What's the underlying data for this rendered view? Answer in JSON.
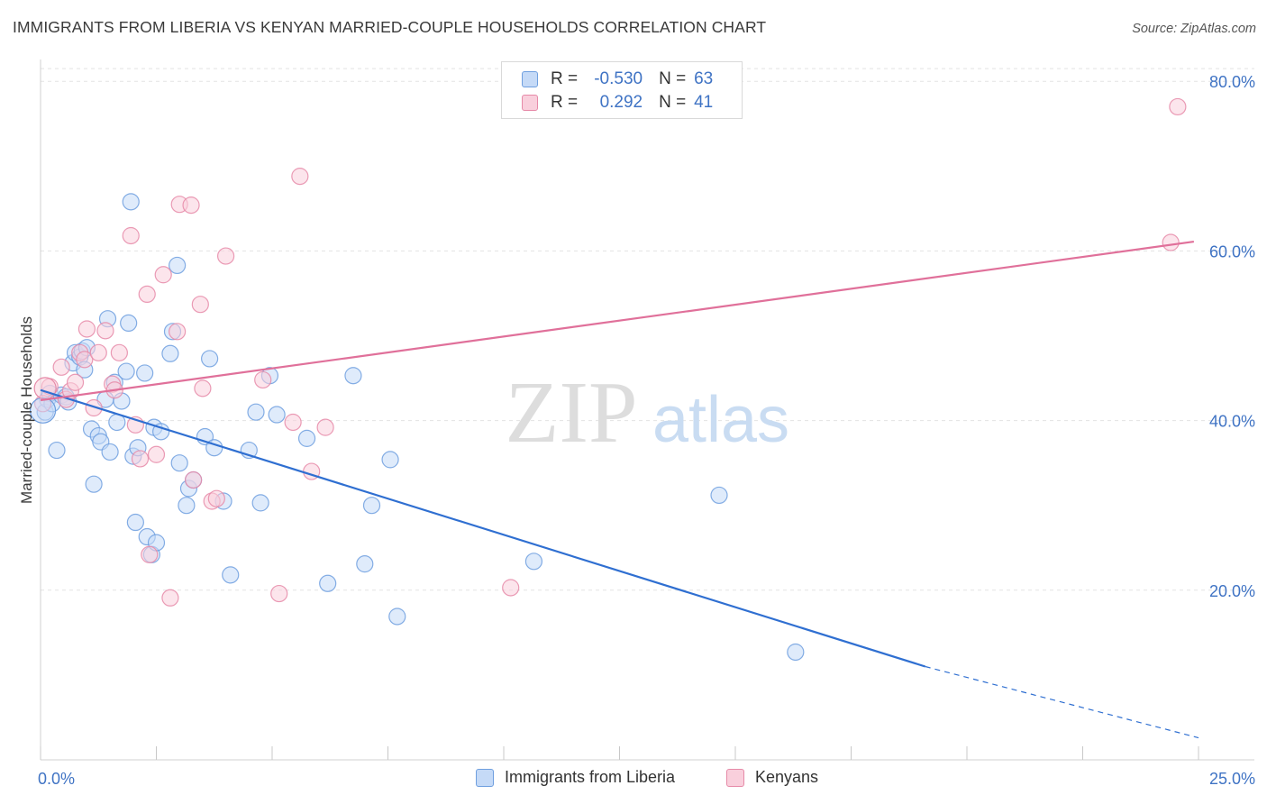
{
  "title": "IMMIGRANTS FROM LIBERIA VS KENYAN MARRIED-COUPLE HOUSEHOLDS CORRELATION CHART",
  "source": "Source: ZipAtlas.com",
  "watermark": {
    "part1": "ZIP",
    "part2": "atlas"
  },
  "colors": {
    "blue_fill": "#c5daf7",
    "blue_stroke": "#6f9fdf",
    "blue_line": "#2f6fd1",
    "pink_fill": "#f9cfdc",
    "pink_stroke": "#e68aa8",
    "pink_line": "#e0709a",
    "tick_label": "#3f73c4",
    "grid": "#e3e3e3"
  },
  "legend": {
    "rows": [
      {
        "r_label": "R =",
        "r_value": "-0.530",
        "n_label": "N =",
        "n_value": "63"
      },
      {
        "r_label": "R =",
        "r_value": "0.292",
        "n_label": "N =",
        "n_value": "41"
      }
    ]
  },
  "bottom_legend": [
    "Immigrants from Liberia",
    "Kenyans"
  ],
  "chart_data": {
    "type": "scatter",
    "title": "IMMIGRANTS FROM LIBERIA VS KENYAN MARRIED-COUPLE HOUSEHOLDS CORRELATION CHART",
    "xlabel": "",
    "ylabel": "Married-couple Households",
    "xlim": [
      0,
      25
    ],
    "ylim": [
      0,
      83
    ],
    "x_tick_labels": [
      "0.0%",
      "25.0%"
    ],
    "y_ticks": [
      20,
      40,
      60,
      80
    ],
    "y_tick_labels": [
      "20.0%",
      "40.0%",
      "60.0%",
      "80.0%"
    ],
    "grid": "horizontal dashed",
    "legend_position": "top-center",
    "series": [
      {
        "name": "Immigrants from Liberia",
        "r": -0.53,
        "n": 63,
        "trend": {
          "x0": 0,
          "y0": 43.6,
          "x1": 19.1,
          "y1": 11.0,
          "dash_to_x": 25,
          "dash_to_y": 2.6
        },
        "points": [
          [
            0.1,
            41.0
          ],
          [
            0.15,
            42.5
          ],
          [
            0.2,
            43.2
          ],
          [
            0.25,
            42.0
          ],
          [
            0.35,
            36.5
          ],
          [
            0.45,
            43.0
          ],
          [
            0.55,
            42.8
          ],
          [
            0.6,
            42.2
          ],
          [
            0.7,
            46.8
          ],
          [
            0.75,
            48.0
          ],
          [
            0.85,
            47.5
          ],
          [
            0.9,
            48.2
          ],
          [
            0.95,
            46.0
          ],
          [
            1.0,
            48.6
          ],
          [
            1.1,
            39.0
          ],
          [
            1.15,
            32.5
          ],
          [
            1.25,
            38.2
          ],
          [
            1.3,
            37.5
          ],
          [
            1.4,
            42.5
          ],
          [
            1.45,
            52.0
          ],
          [
            1.5,
            36.3
          ],
          [
            1.6,
            44.5
          ],
          [
            1.65,
            39.8
          ],
          [
            1.75,
            42.3
          ],
          [
            1.85,
            45.8
          ],
          [
            1.9,
            51.5
          ],
          [
            1.95,
            65.8
          ],
          [
            2.0,
            35.8
          ],
          [
            2.05,
            28.0
          ],
          [
            2.1,
            36.8
          ],
          [
            2.25,
            45.6
          ],
          [
            2.3,
            26.3
          ],
          [
            2.4,
            24.2
          ],
          [
            2.45,
            39.2
          ],
          [
            2.5,
            25.6
          ],
          [
            2.6,
            38.7
          ],
          [
            2.8,
            47.9
          ],
          [
            2.85,
            50.5
          ],
          [
            2.95,
            58.3
          ],
          [
            3.0,
            35.0
          ],
          [
            3.15,
            30.0
          ],
          [
            3.2,
            32.0
          ],
          [
            3.3,
            33.0
          ],
          [
            3.55,
            38.1
          ],
          [
            3.65,
            47.3
          ],
          [
            3.75,
            36.8
          ],
          [
            3.95,
            30.5
          ],
          [
            4.1,
            21.8
          ],
          [
            4.5,
            36.5
          ],
          [
            4.65,
            41.0
          ],
          [
            4.75,
            30.3
          ],
          [
            4.95,
            45.3
          ],
          [
            5.1,
            40.7
          ],
          [
            5.75,
            37.9
          ],
          [
            6.2,
            20.8
          ],
          [
            6.75,
            45.3
          ],
          [
            7.0,
            23.1
          ],
          [
            7.15,
            30.0
          ],
          [
            7.55,
            35.4
          ],
          [
            7.7,
            16.9
          ],
          [
            10.65,
            23.4
          ],
          [
            14.65,
            31.2
          ],
          [
            16.3,
            12.7
          ]
        ]
      },
      {
        "name": "Kenyans",
        "r": 0.292,
        "n": 41,
        "trend": {
          "x0": 0,
          "y0": 42.4,
          "x1": 24.9,
          "y1": 61.1
        },
        "points": [
          [
            0.05,
            42.0
          ],
          [
            0.2,
            44.0
          ],
          [
            0.45,
            46.3
          ],
          [
            0.55,
            42.5
          ],
          [
            0.65,
            43.5
          ],
          [
            0.75,
            44.5
          ],
          [
            0.85,
            48.0
          ],
          [
            0.95,
            47.2
          ],
          [
            1.0,
            50.8
          ],
          [
            1.15,
            41.5
          ],
          [
            1.25,
            48.0
          ],
          [
            1.4,
            50.6
          ],
          [
            1.55,
            44.3
          ],
          [
            1.6,
            43.6
          ],
          [
            1.7,
            48.0
          ],
          [
            1.95,
            61.8
          ],
          [
            2.05,
            39.5
          ],
          [
            2.15,
            35.5
          ],
          [
            2.3,
            54.9
          ],
          [
            2.35,
            24.2
          ],
          [
            2.5,
            36.0
          ],
          [
            2.65,
            57.2
          ],
          [
            2.8,
            19.1
          ],
          [
            2.95,
            50.5
          ],
          [
            3.0,
            65.5
          ],
          [
            3.25,
            65.4
          ],
          [
            3.3,
            33.0
          ],
          [
            3.45,
            53.7
          ],
          [
            3.5,
            43.8
          ],
          [
            3.7,
            30.5
          ],
          [
            3.8,
            30.8
          ],
          [
            4.0,
            59.4
          ],
          [
            4.8,
            44.8
          ],
          [
            5.15,
            19.6
          ],
          [
            5.45,
            39.8
          ],
          [
            5.6,
            68.8
          ],
          [
            5.85,
            34.0
          ],
          [
            6.15,
            39.2
          ],
          [
            10.15,
            20.3
          ],
          [
            24.4,
            61.0
          ],
          [
            24.55,
            77.0
          ]
        ]
      }
    ]
  }
}
